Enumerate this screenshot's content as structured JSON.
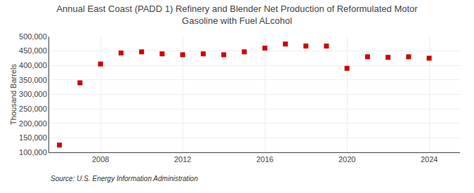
{
  "chart_data": {
    "type": "scatter",
    "title": "Annual East Coast (PADD 1) Refinery and Blender Net Production of Reformulated Motor\nGasoline with Fuel ALcohol",
    "ylabel": "Thousand Barrels",
    "annotations": [
      "Source: U.S. Energy Information Administration"
    ],
    "x": [
      2006,
      2007,
      2008,
      2009,
      2010,
      2011,
      2012,
      2013,
      2014,
      2015,
      2016,
      2017,
      2018,
      2019,
      2020,
      2021,
      2022,
      2023,
      2024
    ],
    "values": [
      125000,
      340000,
      405000,
      443000,
      447000,
      440000,
      437000,
      440000,
      437000,
      447000,
      460000,
      474000,
      467000,
      467000,
      390000,
      430000,
      428000,
      430000,
      425000
    ],
    "color": "#cc0000",
    "marker": "square",
    "xlim": [
      2005.5,
      2025.5
    ],
    "xticks": [
      2008,
      2012,
      2016,
      2020,
      2024
    ],
    "ylim": [
      100000,
      500000
    ],
    "yticks": [
      {
        "value": 100000,
        "label": "100,000"
      },
      {
        "value": 150000,
        "label": "150,000"
      },
      {
        "value": 200000,
        "label": "200,000"
      },
      {
        "value": 250000,
        "label": "250,000"
      },
      {
        "value": 300000,
        "label": "300,000"
      },
      {
        "value": 350000,
        "label": "350,000"
      },
      {
        "value": 400000,
        "label": "400,000"
      },
      {
        "value": 450000,
        "label": "450,000"
      },
      {
        "value": 500000,
        "label": "500,000"
      }
    ],
    "grid": true
  }
}
